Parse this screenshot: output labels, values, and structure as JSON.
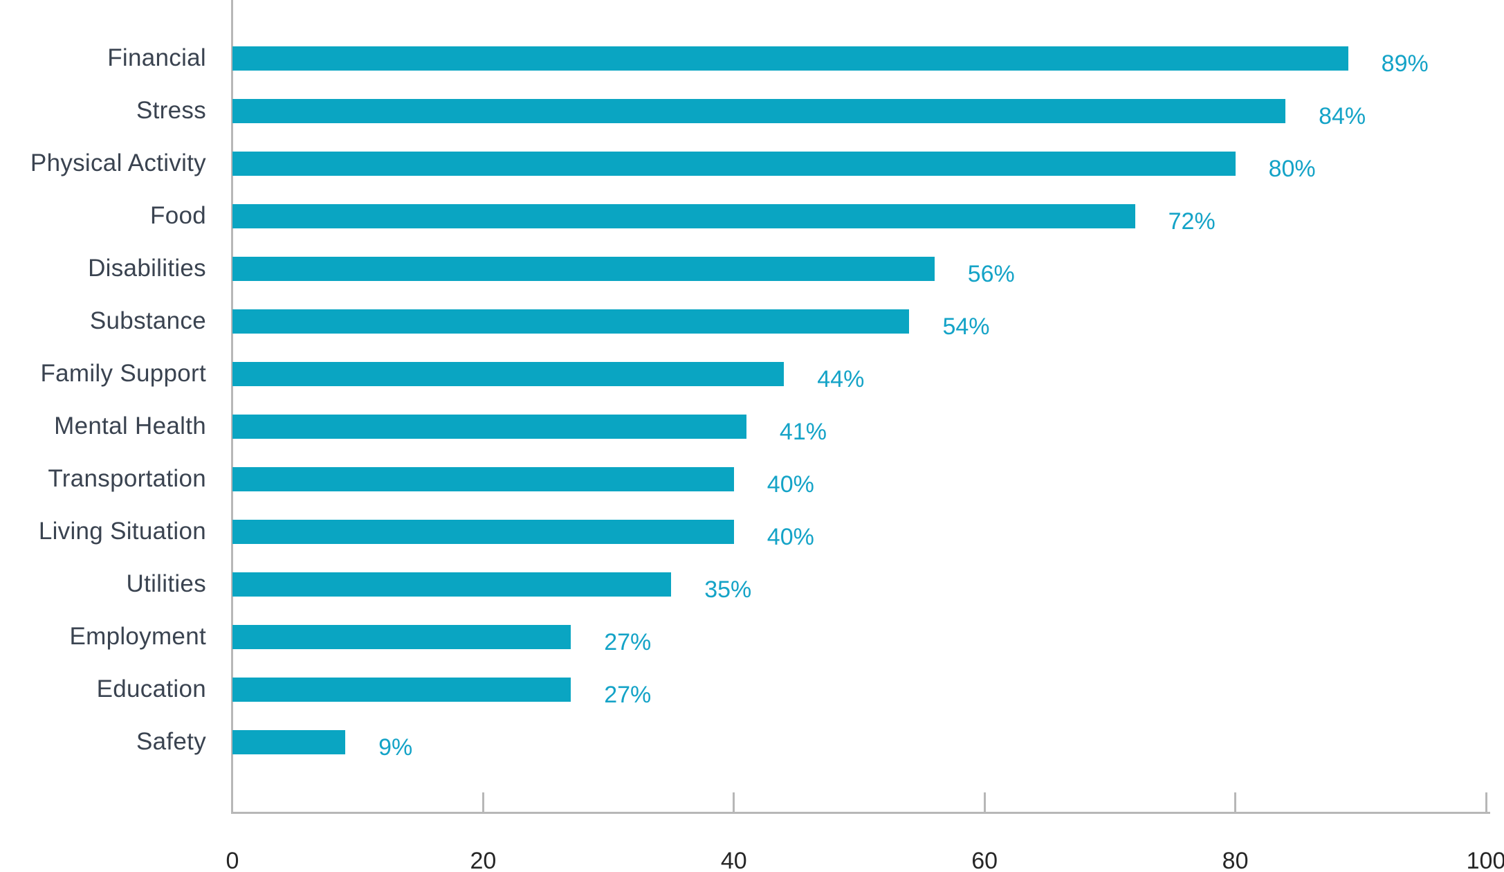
{
  "chart_data": {
    "type": "bar",
    "orientation": "horizontal",
    "title": "",
    "xlabel": "",
    "ylabel": "",
    "categories": [
      "Financial",
      "Stress",
      "Physical Activity",
      "Food",
      "Disabilities",
      "Substance",
      "Family Support",
      "Mental Health",
      "Transportation",
      "Living Situation",
      "Utilities",
      "Employment",
      "Education",
      "Safety"
    ],
    "values": [
      89,
      84,
      80,
      72,
      56,
      54,
      44,
      41,
      40,
      40,
      35,
      27,
      27,
      9
    ],
    "value_labels": [
      "89%",
      "84%",
      "80%",
      "72%",
      "56%",
      "54%",
      "44%",
      "41%",
      "40%",
      "40%",
      "35%",
      "27%",
      "27%",
      "9%"
    ],
    "xlim": [
      0,
      100
    ],
    "x_ticks": [
      0,
      20,
      40,
      60,
      80,
      100
    ],
    "x_tick_labels": [
      "0",
      "20",
      "40",
      "60",
      "80",
      "100"
    ],
    "grid": false,
    "legend": "none",
    "colors": {
      "bar": "#0aa5c2",
      "value_label": "#14a3c7",
      "category_label": "#3a4350",
      "tick_label": "#262626",
      "axis_line": "#b7b7b7"
    }
  }
}
